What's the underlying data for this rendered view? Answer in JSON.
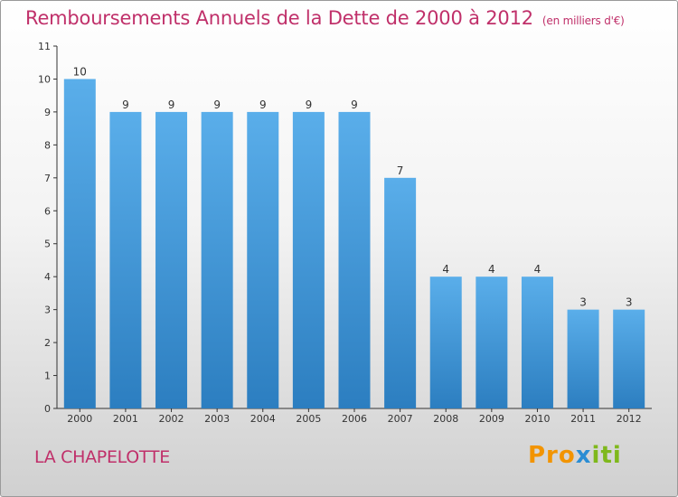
{
  "title_main": "Remboursements Annuels de la Dette de 2000 à 2012",
  "title_unit": "(en milliers d'€)",
  "commune": "LA CHAPELOTTE",
  "logo": {
    "part1": "Pro",
    "part2": "x",
    "part3": "iti"
  },
  "colors": {
    "title": "#c0306a",
    "bar_top": "#5aaeea",
    "bar_bottom": "#2c7ec0"
  },
  "chart_data": {
    "type": "bar",
    "title": "Remboursements Annuels de la Dette de 2000 à 2012",
    "unit": "(en milliers d'€)",
    "categories": [
      "2000",
      "2001",
      "2002",
      "2003",
      "2004",
      "2005",
      "2006",
      "2007",
      "2008",
      "2009",
      "2010",
      "2011",
      "2012"
    ],
    "values": [
      10,
      9,
      9,
      9,
      9,
      9,
      9,
      7,
      4,
      4,
      4,
      3,
      3
    ],
    "data_labels": [
      "10",
      "9",
      "9",
      "9",
      "9",
      "9",
      "9",
      "7",
      "4",
      "4",
      "4",
      "3",
      "3"
    ],
    "yticks": [
      0,
      1,
      2,
      3,
      4,
      5,
      6,
      7,
      8,
      9,
      10,
      11
    ],
    "ylim": [
      0,
      11
    ],
    "grid": false,
    "legend": "none"
  }
}
